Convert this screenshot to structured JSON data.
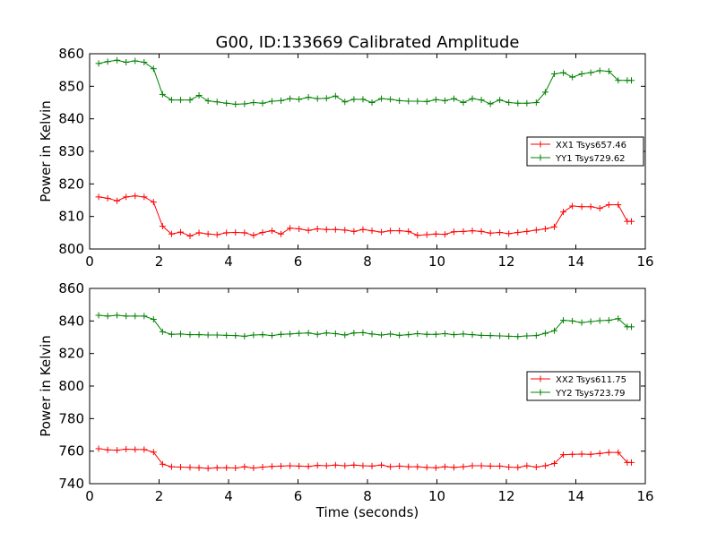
{
  "figure": {
    "title": "G00, ID:133669 Calibrated Amplitude"
  },
  "chart_data": [
    {
      "type": "line",
      "title": "G00, ID:133669 Calibrated Amplitude",
      "xlabel": "",
      "ylabel": "Power in Kelvin",
      "xlim": [
        0,
        16
      ],
      "ylim": [
        800,
        860
      ],
      "xticks": [
        0,
        2,
        4,
        6,
        8,
        10,
        12,
        14,
        16
      ],
      "yticks": [
        800,
        810,
        820,
        830,
        840,
        850,
        860
      ],
      "grid": false,
      "legend_position": "center-right",
      "x": [
        0.26,
        0.52,
        0.79,
        1.05,
        1.31,
        1.57,
        1.84,
        2.1,
        2.36,
        2.62,
        2.89,
        3.15,
        3.41,
        3.67,
        3.94,
        4.2,
        4.46,
        4.72,
        4.98,
        5.25,
        5.51,
        5.77,
        6.03,
        6.3,
        6.56,
        6.82,
        7.08,
        7.35,
        7.61,
        7.87,
        8.13,
        8.4,
        8.66,
        8.92,
        9.18,
        9.44,
        9.71,
        9.97,
        10.23,
        10.49,
        10.76,
        11.02,
        11.28,
        11.54,
        11.81,
        12.07,
        12.33,
        12.59,
        12.86,
        13.12,
        13.38,
        13.64,
        13.9,
        14.17,
        14.43,
        14.69,
        14.95,
        15.22,
        15.48,
        15.6
      ],
      "series": [
        {
          "name": "XX1 Tsys657.46",
          "color": "#ff0000",
          "values": [
            816.0,
            815.6,
            814.8,
            816.0,
            816.3,
            816.0,
            814.4,
            807.0,
            804.6,
            805.2,
            804.0,
            805.0,
            804.6,
            804.4,
            805.0,
            805.1,
            805.0,
            804.2,
            805.1,
            805.6,
            804.6,
            806.4,
            806.2,
            805.7,
            806.2,
            806.0,
            806.0,
            805.8,
            805.4,
            806.0,
            805.6,
            805.2,
            805.6,
            805.6,
            805.4,
            804.2,
            804.4,
            804.6,
            804.5,
            805.3,
            805.4,
            805.6,
            805.4,
            804.9,
            805.1,
            804.7,
            805.1,
            805.4,
            805.8,
            806.2,
            806.8,
            811.4,
            813.2,
            813.0,
            813.0,
            812.5,
            813.6,
            813.6,
            808.5,
            808.5
          ]
        },
        {
          "name": "YY1 Tsys729.62",
          "color": "#008000",
          "values": [
            857.0,
            857.6,
            858.0,
            857.4,
            857.8,
            857.4,
            855.4,
            847.5,
            845.8,
            845.8,
            845.8,
            847.2,
            845.5,
            845.2,
            844.8,
            844.5,
            844.6,
            845.0,
            844.8,
            845.4,
            845.6,
            846.2,
            846.0,
            846.6,
            846.2,
            846.3,
            847.0,
            845.2,
            846.0,
            846.0,
            845.0,
            846.2,
            846.0,
            845.6,
            845.4,
            845.4,
            845.3,
            845.9,
            845.6,
            846.2,
            845.0,
            846.2,
            845.8,
            844.6,
            845.8,
            845.0,
            844.8,
            844.8,
            845.0,
            848.2,
            853.8,
            854.2,
            852.8,
            853.8,
            854.2,
            854.8,
            854.6,
            851.8,
            851.8,
            851.8
          ]
        }
      ]
    },
    {
      "type": "line",
      "title": "",
      "xlabel": "Time (seconds)",
      "ylabel": "Power in Kelvin",
      "xlim": [
        0,
        16
      ],
      "ylim": [
        740,
        860
      ],
      "xticks": [
        0,
        2,
        4,
        6,
        8,
        10,
        12,
        14,
        16
      ],
      "yticks": [
        740,
        760,
        780,
        800,
        820,
        840,
        860
      ],
      "grid": false,
      "legend_position": "center-right",
      "x": [
        0.26,
        0.52,
        0.79,
        1.05,
        1.31,
        1.57,
        1.84,
        2.1,
        2.36,
        2.62,
        2.89,
        3.15,
        3.41,
        3.67,
        3.94,
        4.2,
        4.46,
        4.72,
        4.98,
        5.25,
        5.51,
        5.77,
        6.03,
        6.3,
        6.56,
        6.82,
        7.08,
        7.35,
        7.61,
        7.87,
        8.13,
        8.4,
        8.66,
        8.92,
        9.18,
        9.44,
        9.71,
        9.97,
        10.23,
        10.49,
        10.76,
        11.02,
        11.28,
        11.54,
        11.81,
        12.07,
        12.33,
        12.59,
        12.86,
        13.12,
        13.38,
        13.64,
        13.9,
        14.17,
        14.43,
        14.69,
        14.95,
        15.22,
        15.48,
        15.6
      ],
      "series": [
        {
          "name": "XX2 Tsys611.75",
          "color": "#ff0000",
          "values": [
            761.5,
            760.8,
            760.6,
            761.2,
            761.0,
            761.0,
            759.4,
            752.0,
            750.4,
            750.2,
            750.0,
            749.8,
            749.4,
            749.8,
            749.8,
            749.6,
            750.4,
            749.6,
            750.2,
            750.6,
            750.8,
            751.0,
            750.8,
            750.6,
            751.2,
            751.0,
            751.4,
            751.0,
            751.4,
            751.0,
            750.8,
            751.4,
            750.4,
            750.8,
            750.4,
            750.4,
            750.0,
            749.8,
            750.4,
            750.0,
            750.4,
            751.0,
            751.0,
            750.8,
            750.8,
            750.2,
            750.0,
            751.0,
            750.2,
            751.0,
            752.4,
            757.8,
            758.0,
            758.2,
            758.0,
            758.6,
            759.2,
            759.2,
            753.0,
            753.0
          ]
        },
        {
          "name": "YY2 Tsys723.79",
          "color": "#008000",
          "values": [
            843.5,
            843.0,
            843.5,
            843.0,
            843.0,
            843.0,
            841.0,
            833.4,
            831.8,
            832.0,
            831.6,
            831.6,
            831.4,
            831.4,
            831.2,
            831.0,
            830.6,
            831.4,
            831.6,
            831.0,
            831.8,
            832.0,
            832.4,
            832.6,
            831.8,
            832.6,
            832.2,
            831.4,
            832.6,
            832.8,
            832.0,
            831.4,
            832.0,
            831.2,
            831.6,
            832.2,
            831.8,
            831.8,
            832.2,
            831.6,
            832.0,
            831.6,
            831.2,
            831.0,
            830.8,
            830.6,
            830.4,
            830.8,
            831.0,
            832.4,
            834.0,
            840.4,
            840.0,
            839.0,
            839.6,
            840.2,
            840.4,
            841.4,
            836.4,
            836.4
          ]
        }
      ]
    }
  ]
}
